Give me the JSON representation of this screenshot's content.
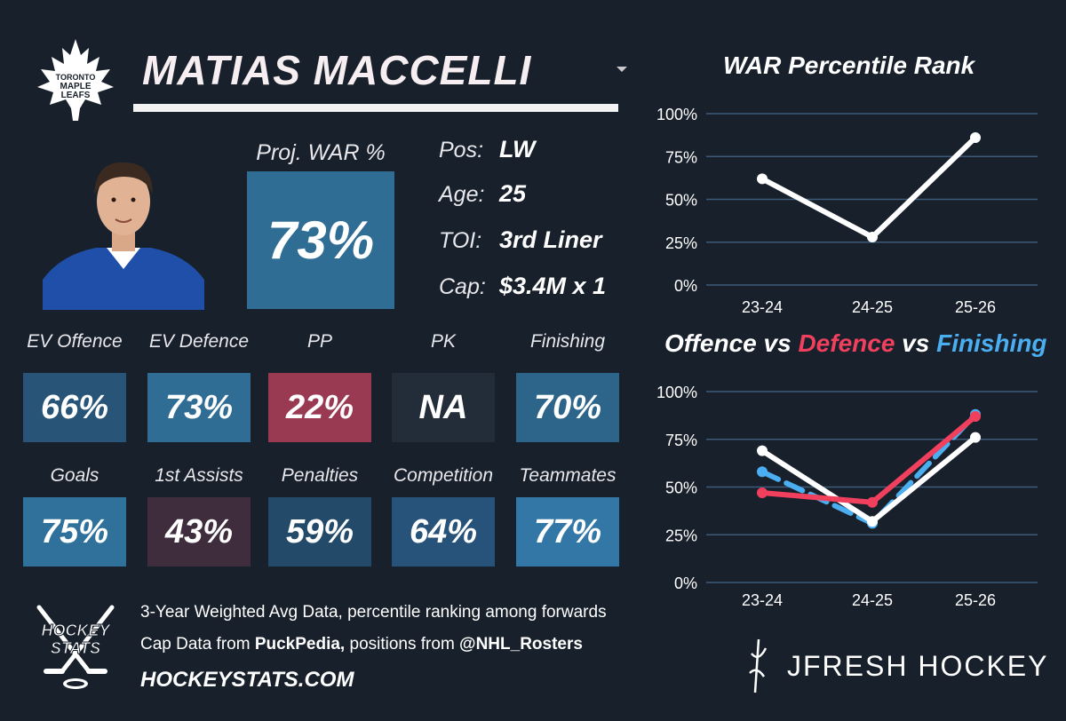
{
  "team_logo": {
    "icon": "maple-leaf-icon",
    "text": [
      "TORONTO",
      "MAPLE",
      "LEAFS"
    ]
  },
  "player": {
    "name": "MATIAS MACCELLI"
  },
  "proj_war": {
    "label": "Proj. WAR %",
    "value": "73%"
  },
  "info": [
    {
      "label": "Pos:",
      "value": "LW"
    },
    {
      "label": "Age:",
      "value": "25"
    },
    {
      "label": "TOI:",
      "value": "3rd Liner"
    },
    {
      "label": "Cap:",
      "value": "$3.4M x 1"
    }
  ],
  "tiles_row1": [
    {
      "label": "EV Offence",
      "value": "66%",
      "color": "#285577"
    },
    {
      "label": "EV Defence",
      "value": "73%",
      "color": "#2f6d94"
    },
    {
      "label": "PP",
      "value": "22%",
      "color": "#9a3a52"
    },
    {
      "label": "PK",
      "value": "NA",
      "color": "#232c39"
    },
    {
      "label": "Finishing",
      "value": "70%",
      "color": "#2c648a"
    }
  ],
  "tiles_row2": [
    {
      "label": "Goals",
      "value": "75%",
      "color": "#2f719b"
    },
    {
      "label": "1st Assists",
      "value": "43%",
      "color": "#3f2c3d"
    },
    {
      "label": "Penalties",
      "value": "59%",
      "color": "#244a69"
    },
    {
      "label": "Competition",
      "value": "64%",
      "color": "#27527a"
    },
    {
      "label": "Teammates",
      "value": "77%",
      "color": "#3277a5"
    }
  ],
  "footer": {
    "line1": "3-Year Weighted Avg Data, percentile ranking among forwards",
    "line2_prefix": "Cap Data from ",
    "line2_source": "PuckPedia,",
    "line2_mid": " positions from ",
    "line2_handle": "@NHL_Rosters",
    "url": "HOCKEYSTATS.COM",
    "hs_logo_text": [
      "HOCKEY",
      "STATS"
    ],
    "jfresh": "JFRESH HOCKEY"
  },
  "chart_data": [
    {
      "type": "line",
      "title": "WAR Percentile Rank",
      "categories": [
        "23-24",
        "24-25",
        "25-26"
      ],
      "yticks": [
        "0%",
        "25%",
        "50%",
        "75%",
        "100%"
      ],
      "ylim": [
        0,
        100
      ],
      "grid": true,
      "series": [
        {
          "values": [
            62,
            28,
            86
          ],
          "color": "#ffffff"
        }
      ]
    },
    {
      "type": "line",
      "title_parts": [
        {
          "text": "Offence",
          "color": "#ffffff"
        },
        {
          "text": " vs ",
          "color": "#ffffff"
        },
        {
          "text": "Defence",
          "color": "#f0405e"
        },
        {
          "text": " vs ",
          "color": "#ffffff"
        },
        {
          "text": "Finishing",
          "color": "#4aaef0"
        }
      ],
      "categories": [
        "23-24",
        "24-25",
        "25-26"
      ],
      "yticks": [
        "0%",
        "25%",
        "50%",
        "75%",
        "100%"
      ],
      "ylim": [
        0,
        100
      ],
      "grid": true,
      "series": [
        {
          "values": [
            58,
            31,
            88
          ],
          "color": "#4aaef0",
          "dash": true
        },
        {
          "values": [
            69,
            32,
            76
          ],
          "color": "#ffffff",
          "dash": false
        },
        {
          "values": [
            47,
            42,
            87
          ],
          "color": "#f0405e",
          "dash": false
        }
      ]
    }
  ]
}
